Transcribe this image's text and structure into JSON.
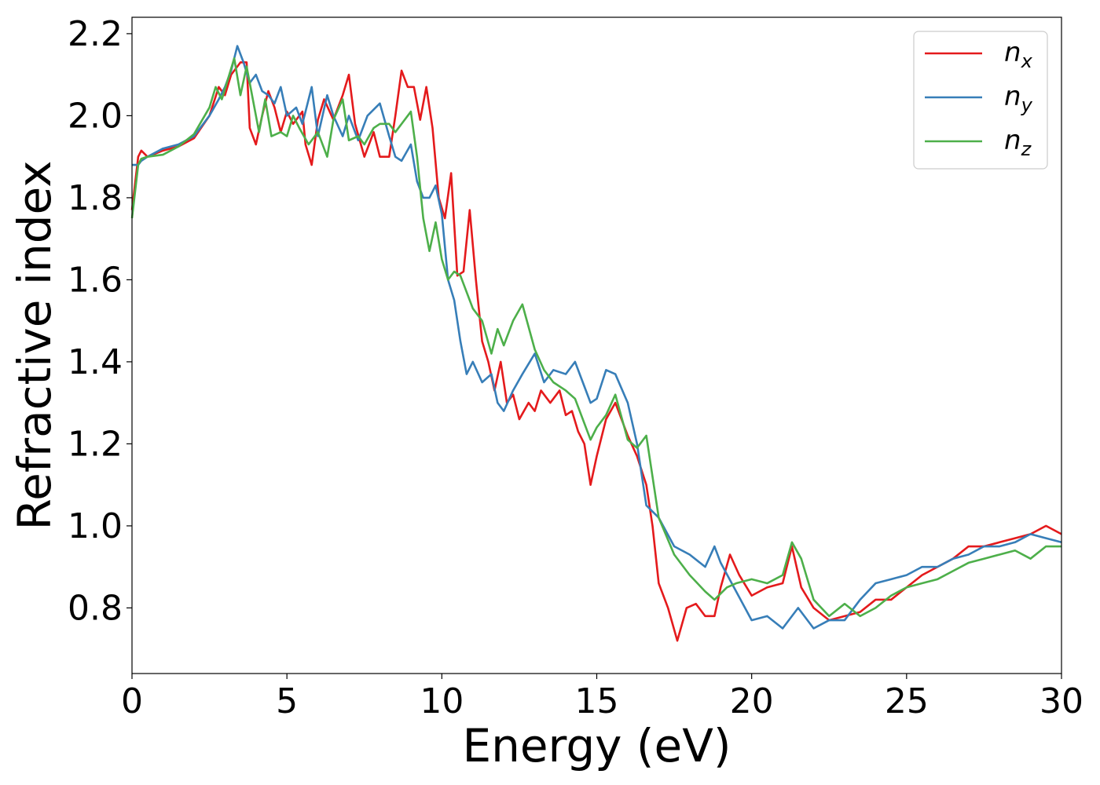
{
  "chart_data": {
    "type": "line",
    "xlabel": "Energy (eV)",
    "ylabel": "Refractive index",
    "xlim": [
      0,
      30
    ],
    "ylim": [
      0.64,
      2.24
    ],
    "x_ticks": [
      "0",
      "5",
      "10",
      "15",
      "20",
      "25",
      "30"
    ],
    "y_ticks": [
      "0.8",
      "1.0",
      "1.2",
      "1.4",
      "1.6",
      "1.8",
      "2.0",
      "2.2"
    ],
    "grid": false,
    "legend_position": "top-right",
    "series": [
      {
        "name": "n",
        "subscript": "x",
        "color": "#e41a1c",
        "points": [
          [
            0,
            1.77
          ],
          [
            0.2,
            1.9
          ],
          [
            0.3,
            1.915
          ],
          [
            0.5,
            1.9
          ],
          [
            1,
            1.915
          ],
          [
            1.5,
            1.925
          ],
          [
            2,
            1.945
          ],
          [
            2.5,
            2.0
          ],
          [
            2.8,
            2.07
          ],
          [
            3.0,
            2.05
          ],
          [
            3.2,
            2.1
          ],
          [
            3.5,
            2.13
          ],
          [
            3.7,
            2.13
          ],
          [
            3.8,
            1.97
          ],
          [
            4.0,
            1.93
          ],
          [
            4.2,
            2.0
          ],
          [
            4.4,
            2.06
          ],
          [
            4.6,
            2.02
          ],
          [
            4.8,
            1.96
          ],
          [
            5.0,
            2.01
          ],
          [
            5.2,
            1.98
          ],
          [
            5.5,
            2.01
          ],
          [
            5.6,
            1.93
          ],
          [
            5.8,
            1.88
          ],
          [
            6.0,
            1.99
          ],
          [
            6.2,
            2.04
          ],
          [
            6.5,
            1.99
          ],
          [
            6.8,
            2.05
          ],
          [
            7.0,
            2.1
          ],
          [
            7.2,
            1.98
          ],
          [
            7.5,
            1.9
          ],
          [
            7.8,
            1.96
          ],
          [
            8.0,
            1.9
          ],
          [
            8.3,
            1.9
          ],
          [
            8.5,
            2.0
          ],
          [
            8.7,
            2.11
          ],
          [
            8.9,
            2.07
          ],
          [
            9.1,
            2.07
          ],
          [
            9.3,
            1.99
          ],
          [
            9.5,
            2.07
          ],
          [
            9.7,
            1.97
          ],
          [
            9.9,
            1.8
          ],
          [
            10.1,
            1.75
          ],
          [
            10.3,
            1.86
          ],
          [
            10.5,
            1.61
          ],
          [
            10.7,
            1.62
          ],
          [
            10.9,
            1.77
          ],
          [
            11.1,
            1.6
          ],
          [
            11.3,
            1.45
          ],
          [
            11.5,
            1.4
          ],
          [
            11.7,
            1.33
          ],
          [
            11.9,
            1.4
          ],
          [
            12.1,
            1.3
          ],
          [
            12.3,
            1.32
          ],
          [
            12.5,
            1.26
          ],
          [
            12.8,
            1.3
          ],
          [
            13.0,
            1.28
          ],
          [
            13.2,
            1.33
          ],
          [
            13.5,
            1.3
          ],
          [
            13.8,
            1.33
          ],
          [
            14.0,
            1.27
          ],
          [
            14.2,
            1.28
          ],
          [
            14.4,
            1.23
          ],
          [
            14.6,
            1.2
          ],
          [
            14.8,
            1.1
          ],
          [
            15.0,
            1.17
          ],
          [
            15.3,
            1.26
          ],
          [
            15.6,
            1.3
          ],
          [
            16.0,
            1.22
          ],
          [
            16.3,
            1.17
          ],
          [
            16.6,
            1.1
          ],
          [
            16.8,
            1.0
          ],
          [
            17.0,
            0.86
          ],
          [
            17.3,
            0.8
          ],
          [
            17.6,
            0.72
          ],
          [
            17.9,
            0.8
          ],
          [
            18.2,
            0.81
          ],
          [
            18.5,
            0.78
          ],
          [
            18.8,
            0.78
          ],
          [
            19.0,
            0.85
          ],
          [
            19.3,
            0.93
          ],
          [
            19.6,
            0.88
          ],
          [
            20.0,
            0.83
          ],
          [
            20.5,
            0.85
          ],
          [
            21.0,
            0.86
          ],
          [
            21.3,
            0.95
          ],
          [
            21.6,
            0.85
          ],
          [
            22.0,
            0.8
          ],
          [
            22.5,
            0.77
          ],
          [
            23.0,
            0.78
          ],
          [
            23.5,
            0.79
          ],
          [
            24.0,
            0.82
          ],
          [
            24.5,
            0.82
          ],
          [
            25.0,
            0.85
          ],
          [
            25.5,
            0.88
          ],
          [
            26.0,
            0.9
          ],
          [
            26.5,
            0.92
          ],
          [
            27.0,
            0.95
          ],
          [
            27.5,
            0.95
          ],
          [
            28.0,
            0.96
          ],
          [
            28.5,
            0.97
          ],
          [
            29.0,
            0.98
          ],
          [
            29.5,
            1.0
          ],
          [
            30,
            0.98
          ]
        ]
      },
      {
        "name": "n",
        "subscript": "y",
        "color": "#377eb8",
        "points": [
          [
            0,
            1.88
          ],
          [
            0.2,
            1.88
          ],
          [
            0.3,
            1.89
          ],
          [
            0.5,
            1.9
          ],
          [
            1,
            1.92
          ],
          [
            1.5,
            1.93
          ],
          [
            2,
            1.95
          ],
          [
            2.5,
            2.0
          ],
          [
            2.8,
            2.04
          ],
          [
            3.0,
            2.07
          ],
          [
            3.2,
            2.11
          ],
          [
            3.4,
            2.17
          ],
          [
            3.6,
            2.13
          ],
          [
            3.8,
            2.08
          ],
          [
            4.0,
            2.1
          ],
          [
            4.2,
            2.06
          ],
          [
            4.4,
            2.05
          ],
          [
            4.6,
            2.03
          ],
          [
            4.8,
            2.07
          ],
          [
            5.0,
            2.0
          ],
          [
            5.3,
            2.02
          ],
          [
            5.5,
            1.98
          ],
          [
            5.8,
            2.07
          ],
          [
            6.0,
            1.95
          ],
          [
            6.3,
            2.05
          ],
          [
            6.5,
            2.0
          ],
          [
            6.8,
            1.95
          ],
          [
            7.0,
            2.0
          ],
          [
            7.3,
            1.94
          ],
          [
            7.6,
            2.0
          ],
          [
            8.0,
            2.03
          ],
          [
            8.3,
            1.95
          ],
          [
            8.5,
            1.9
          ],
          [
            8.7,
            1.89
          ],
          [
            9.0,
            1.93
          ],
          [
            9.2,
            1.84
          ],
          [
            9.4,
            1.8
          ],
          [
            9.6,
            1.8
          ],
          [
            9.8,
            1.83
          ],
          [
            10.0,
            1.76
          ],
          [
            10.2,
            1.6
          ],
          [
            10.4,
            1.55
          ],
          [
            10.6,
            1.45
          ],
          [
            10.8,
            1.37
          ],
          [
            11.0,
            1.4
          ],
          [
            11.3,
            1.35
          ],
          [
            11.6,
            1.37
          ],
          [
            11.8,
            1.3
          ],
          [
            12.0,
            1.28
          ],
          [
            12.3,
            1.33
          ],
          [
            12.6,
            1.37
          ],
          [
            13.0,
            1.42
          ],
          [
            13.3,
            1.35
          ],
          [
            13.6,
            1.38
          ],
          [
            14.0,
            1.37
          ],
          [
            14.3,
            1.4
          ],
          [
            14.6,
            1.34
          ],
          [
            14.8,
            1.3
          ],
          [
            15.0,
            1.31
          ],
          [
            15.3,
            1.38
          ],
          [
            15.6,
            1.37
          ],
          [
            16.0,
            1.3
          ],
          [
            16.3,
            1.2
          ],
          [
            16.6,
            1.05
          ],
          [
            17.0,
            1.02
          ],
          [
            17.5,
            0.95
          ],
          [
            18.0,
            0.93
          ],
          [
            18.5,
            0.9
          ],
          [
            18.8,
            0.95
          ],
          [
            19.0,
            0.91
          ],
          [
            19.5,
            0.84
          ],
          [
            20.0,
            0.77
          ],
          [
            20.5,
            0.78
          ],
          [
            21.0,
            0.75
          ],
          [
            21.5,
            0.8
          ],
          [
            22.0,
            0.75
          ],
          [
            22.5,
            0.77
          ],
          [
            23.0,
            0.77
          ],
          [
            23.5,
            0.82
          ],
          [
            24.0,
            0.86
          ],
          [
            24.5,
            0.87
          ],
          [
            25.0,
            0.88
          ],
          [
            25.5,
            0.9
          ],
          [
            26.0,
            0.9
          ],
          [
            26.5,
            0.92
          ],
          [
            27.0,
            0.93
          ],
          [
            27.5,
            0.95
          ],
          [
            28.0,
            0.95
          ],
          [
            28.5,
            0.96
          ],
          [
            29.0,
            0.98
          ],
          [
            29.5,
            0.97
          ],
          [
            30,
            0.96
          ]
        ]
      },
      {
        "name": "n",
        "subscript": "z",
        "color": "#4daf4a",
        "points": [
          [
            0,
            1.75
          ],
          [
            0.2,
            1.88
          ],
          [
            0.3,
            1.895
          ],
          [
            0.5,
            1.9
          ],
          [
            1,
            1.905
          ],
          [
            1.5,
            1.925
          ],
          [
            2,
            1.955
          ],
          [
            2.5,
            2.02
          ],
          [
            2.7,
            2.07
          ],
          [
            2.9,
            2.04
          ],
          [
            3.1,
            2.09
          ],
          [
            3.3,
            2.14
          ],
          [
            3.5,
            2.05
          ],
          [
            3.7,
            2.12
          ],
          [
            3.9,
            2.04
          ],
          [
            4.1,
            1.96
          ],
          [
            4.3,
            2.04
          ],
          [
            4.5,
            1.95
          ],
          [
            4.8,
            1.96
          ],
          [
            5.0,
            1.95
          ],
          [
            5.2,
            2.0
          ],
          [
            5.4,
            1.97
          ],
          [
            5.7,
            1.93
          ],
          [
            6.0,
            1.96
          ],
          [
            6.3,
            1.9
          ],
          [
            6.5,
            1.99
          ],
          [
            6.8,
            2.04
          ],
          [
            7.0,
            1.94
          ],
          [
            7.3,
            1.95
          ],
          [
            7.5,
            1.93
          ],
          [
            7.8,
            1.97
          ],
          [
            8.0,
            1.98
          ],
          [
            8.3,
            1.98
          ],
          [
            8.5,
            1.96
          ],
          [
            8.7,
            1.98
          ],
          [
            9.0,
            2.01
          ],
          [
            9.2,
            1.9
          ],
          [
            9.4,
            1.75
          ],
          [
            9.6,
            1.67
          ],
          [
            9.8,
            1.74
          ],
          [
            10.0,
            1.65
          ],
          [
            10.2,
            1.6
          ],
          [
            10.4,
            1.62
          ],
          [
            10.6,
            1.61
          ],
          [
            10.8,
            1.57
          ],
          [
            11.0,
            1.53
          ],
          [
            11.3,
            1.5
          ],
          [
            11.6,
            1.42
          ],
          [
            11.8,
            1.48
          ],
          [
            12.0,
            1.44
          ],
          [
            12.3,
            1.5
          ],
          [
            12.6,
            1.54
          ],
          [
            13.0,
            1.43
          ],
          [
            13.3,
            1.38
          ],
          [
            13.6,
            1.35
          ],
          [
            14.0,
            1.33
          ],
          [
            14.3,
            1.31
          ],
          [
            14.6,
            1.25
          ],
          [
            14.8,
            1.21
          ],
          [
            15.0,
            1.24
          ],
          [
            15.3,
            1.27
          ],
          [
            15.6,
            1.32
          ],
          [
            16.0,
            1.21
          ],
          [
            16.3,
            1.19
          ],
          [
            16.6,
            1.22
          ],
          [
            17.0,
            1.02
          ],
          [
            17.5,
            0.93
          ],
          [
            18.0,
            0.88
          ],
          [
            18.5,
            0.84
          ],
          [
            18.8,
            0.82
          ],
          [
            19.2,
            0.85
          ],
          [
            19.5,
            0.86
          ],
          [
            20.0,
            0.87
          ],
          [
            20.5,
            0.86
          ],
          [
            21.0,
            0.88
          ],
          [
            21.3,
            0.96
          ],
          [
            21.6,
            0.92
          ],
          [
            22.0,
            0.82
          ],
          [
            22.5,
            0.78
          ],
          [
            23.0,
            0.81
          ],
          [
            23.5,
            0.78
          ],
          [
            24.0,
            0.8
          ],
          [
            24.5,
            0.83
          ],
          [
            25.0,
            0.85
          ],
          [
            25.5,
            0.86
          ],
          [
            26.0,
            0.87
          ],
          [
            26.5,
            0.89
          ],
          [
            27.0,
            0.91
          ],
          [
            27.5,
            0.92
          ],
          [
            28.0,
            0.93
          ],
          [
            28.5,
            0.94
          ],
          [
            29.0,
            0.92
          ],
          [
            29.5,
            0.95
          ],
          [
            30,
            0.95
          ]
        ]
      }
    ]
  }
}
